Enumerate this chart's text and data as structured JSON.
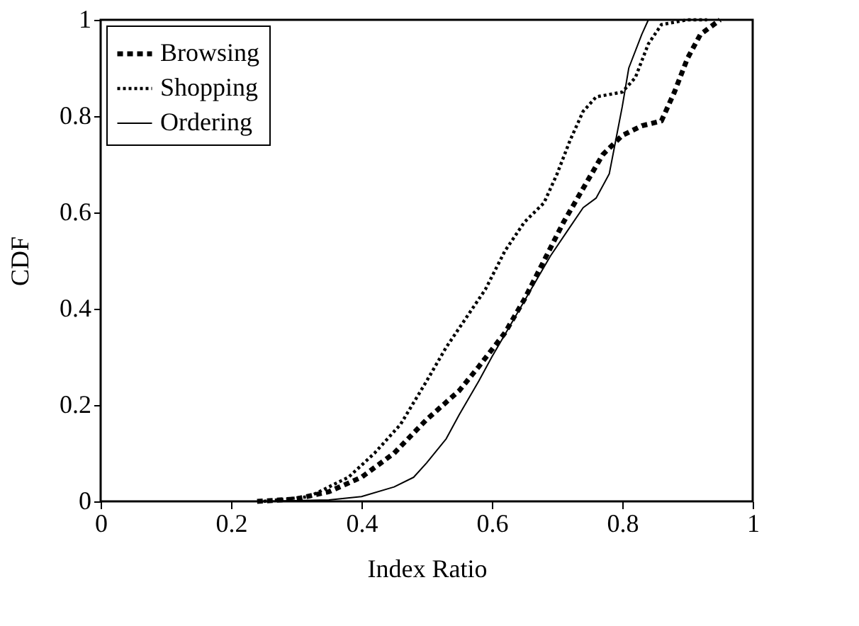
{
  "chart_data": {
    "type": "line",
    "xlabel": "Index Ratio",
    "ylabel": "CDF",
    "xlim": [
      0,
      1
    ],
    "ylim": [
      0,
      1
    ],
    "xticks": [
      0,
      0.2,
      0.4,
      0.6,
      0.8,
      1
    ],
    "yticks": [
      0,
      0.2,
      0.4,
      0.6,
      0.8,
      1
    ],
    "grid": false,
    "legend": "top left",
    "marker": "none",
    "series": [
      {
        "name": "Browsing",
        "color": "#000000",
        "line_style": "dashed",
        "x": [
          0.24,
          0.3,
          0.35,
          0.4,
          0.45,
          0.5,
          0.55,
          0.58,
          0.62,
          0.65,
          0.68,
          0.71,
          0.74,
          0.77,
          0.8,
          0.83,
          0.86,
          0.88,
          0.9,
          0.92,
          0.95
        ],
        "values": [
          0,
          0.005,
          0.02,
          0.05,
          0.1,
          0.17,
          0.23,
          0.28,
          0.35,
          0.42,
          0.5,
          0.58,
          0.65,
          0.72,
          0.76,
          0.78,
          0.79,
          0.85,
          0.92,
          0.97,
          1.0
        ]
      },
      {
        "name": "Shopping",
        "color": "#000000",
        "line_style": "dotted",
        "x": [
          0.25,
          0.32,
          0.38,
          0.42,
          0.46,
          0.5,
          0.53,
          0.56,
          0.59,
          0.62,
          0.65,
          0.68,
          0.7,
          0.72,
          0.74,
          0.76,
          0.8,
          0.82,
          0.84,
          0.86,
          0.9,
          0.93
        ],
        "values": [
          0,
          0.01,
          0.05,
          0.1,
          0.16,
          0.25,
          0.32,
          0.38,
          0.44,
          0.52,
          0.58,
          0.62,
          0.68,
          0.75,
          0.81,
          0.84,
          0.85,
          0.88,
          0.95,
          0.99,
          1.0,
          1.0
        ]
      },
      {
        "name": "Ordering",
        "color": "#000000",
        "line_style": "solid",
        "x": [
          0.24,
          0.35,
          0.4,
          0.45,
          0.48,
          0.5,
          0.53,
          0.55,
          0.58,
          0.6,
          0.63,
          0.66,
          0.69,
          0.72,
          0.74,
          0.76,
          0.78,
          0.79,
          0.8,
          0.81,
          0.83,
          0.84,
          0.85
        ],
        "values": [
          0,
          0.003,
          0.01,
          0.03,
          0.05,
          0.08,
          0.13,
          0.18,
          0.25,
          0.3,
          0.37,
          0.44,
          0.51,
          0.57,
          0.61,
          0.63,
          0.68,
          0.75,
          0.82,
          0.9,
          0.97,
          1.0,
          1.0
        ]
      }
    ]
  }
}
